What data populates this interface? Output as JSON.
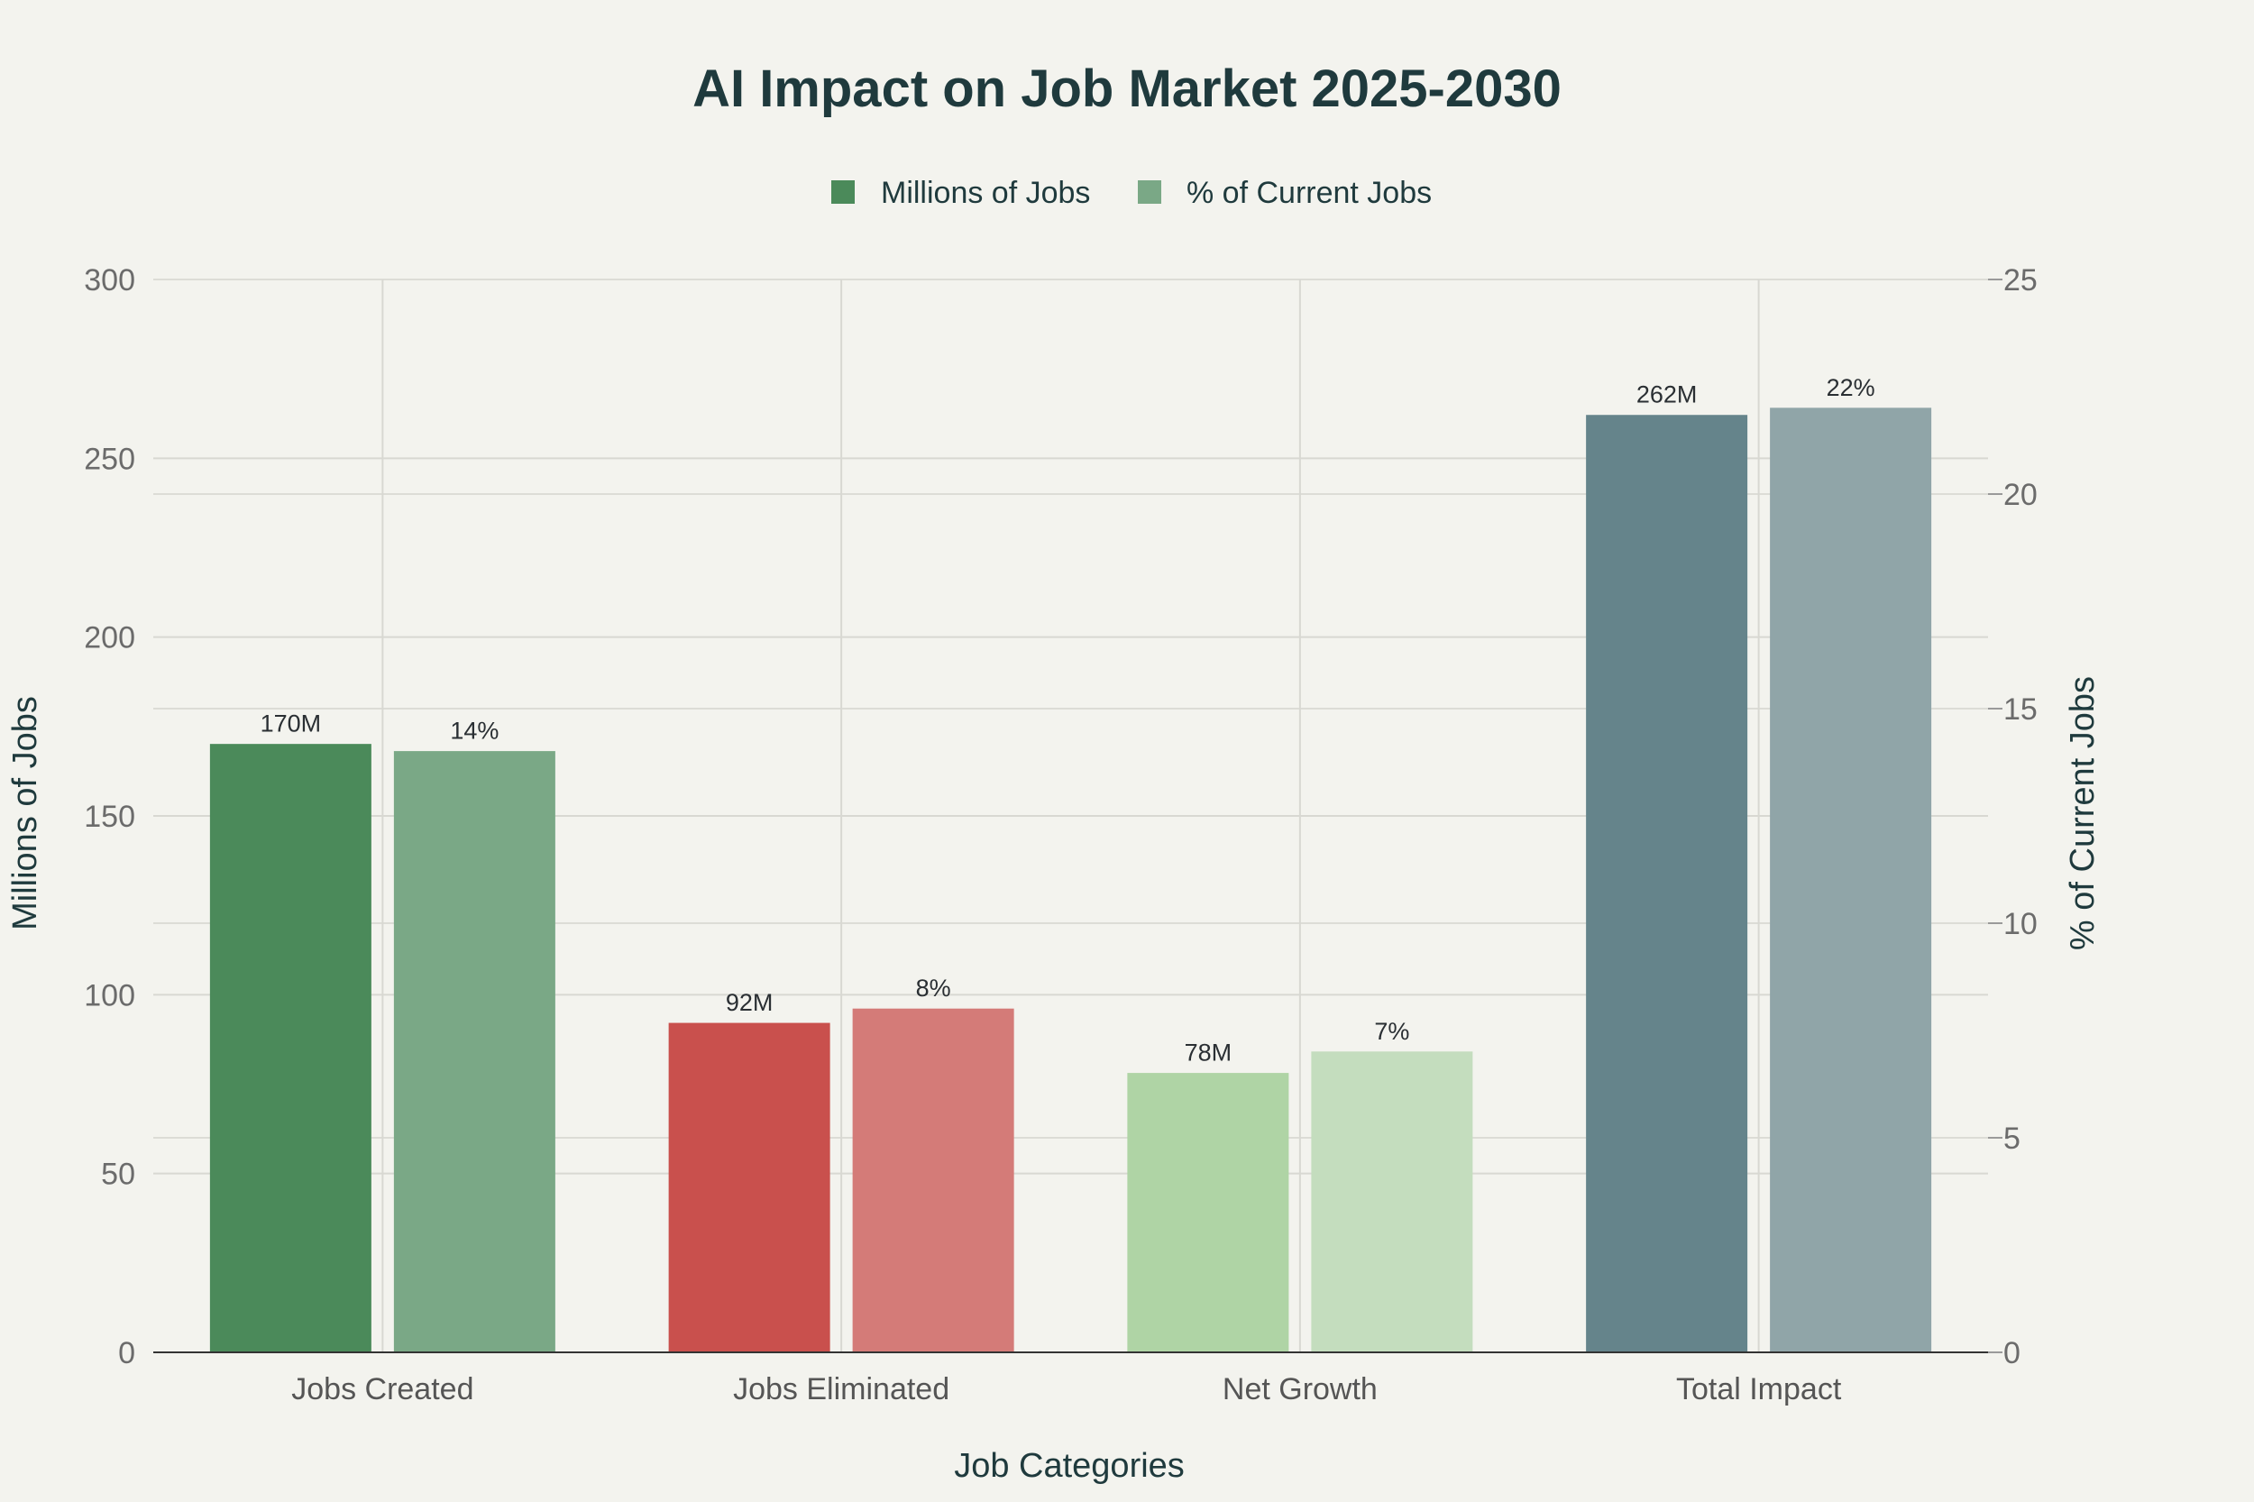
{
  "chart_data": {
    "type": "bar",
    "title": "AI Impact on Job Market 2025-2030",
    "xlabel": "Job Categories",
    "ylabel": "Millions of Jobs",
    "y2label": "% of Current Jobs",
    "categories": [
      "Jobs Created",
      "Jobs Eliminated",
      "Net Growth",
      "Total Impact"
    ],
    "ylim": [
      0,
      300
    ],
    "y2lim": [
      0,
      25
    ],
    "yticks": [
      0,
      50,
      100,
      150,
      200,
      250,
      300
    ],
    "y2ticks": [
      0,
      5,
      10,
      15,
      20,
      25
    ],
    "grid": true,
    "legend_position": "top-center",
    "series": [
      {
        "name": "Millions of Jobs",
        "axis": "left",
        "values": [
          170,
          92,
          78,
          262
        ],
        "labels": [
          "170M",
          "92M",
          "78M",
          "262M"
        ],
        "colors": [
          "#4b8a5a",
          "#c9504d",
          "#afd4a5",
          "#65848b"
        ]
      },
      {
        "name": "% of Current Jobs",
        "axis": "right",
        "values": [
          14,
          8,
          7,
          22
        ],
        "labels": [
          "14%",
          "8%",
          "7%",
          "22%"
        ],
        "colors": [
          "#7aa886",
          "#d47b78",
          "#c4ddbe",
          "#90a5a8"
        ]
      }
    ],
    "legend_colors": [
      "#4b8a5a",
      "#7aa886"
    ]
  }
}
